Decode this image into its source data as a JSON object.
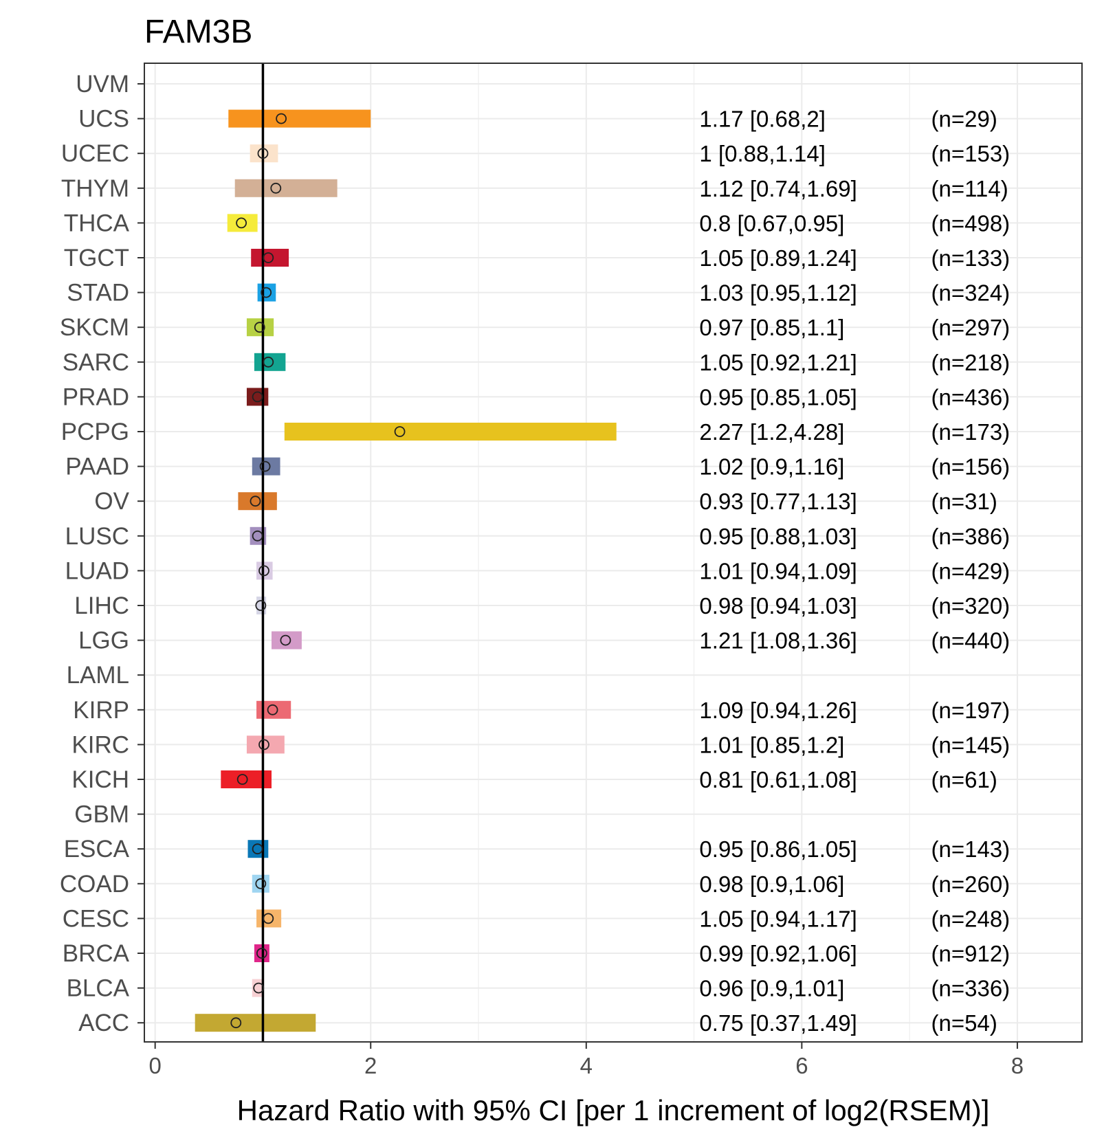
{
  "chart_data": {
    "type": "forest",
    "title": "FAM3B",
    "xlabel": "Hazard Ratio with 95% CI [per 1 increment of log2(RSEM)]",
    "xlim": [
      -0.1,
      8.6
    ],
    "xticks": [
      0,
      2,
      4,
      6,
      8
    ],
    "reference_line": 1,
    "grid": true,
    "rows": [
      {
        "label": "UVM",
        "hr": null,
        "lo": null,
        "hi": null,
        "text": "",
        "n": "",
        "color": ""
      },
      {
        "label": "UCS",
        "hr": 1.17,
        "lo": 0.68,
        "hi": 2,
        "text": "1.17 [0.68,2]",
        "n": "(n=29)",
        "color": "#F7931E"
      },
      {
        "label": "UCEC",
        "hr": 1,
        "lo": 0.88,
        "hi": 1.14,
        "text": "1 [0.88,1.14]",
        "n": "(n=153)",
        "color": "#FBE3CB"
      },
      {
        "label": "THYM",
        "hr": 1.12,
        "lo": 0.74,
        "hi": 1.69,
        "text": "1.12 [0.74,1.69]",
        "n": "(n=114)",
        "color": "#D3B096"
      },
      {
        "label": "THCA",
        "hr": 0.8,
        "lo": 0.67,
        "hi": 0.95,
        "text": "0.8 [0.67,0.95]",
        "n": "(n=498)",
        "color": "#F5EB3B"
      },
      {
        "label": "TGCT",
        "hr": 1.05,
        "lo": 0.89,
        "hi": 1.24,
        "text": "1.05 [0.89,1.24]",
        "n": "(n=133)",
        "color": "#C4162F"
      },
      {
        "label": "STAD",
        "hr": 1.03,
        "lo": 0.95,
        "hi": 1.12,
        "text": "1.03 [0.95,1.12]",
        "n": "(n=324)",
        "color": "#1AA1E4"
      },
      {
        "label": "SKCM",
        "hr": 0.97,
        "lo": 0.85,
        "hi": 1.1,
        "text": "0.97 [0.85,1.1]",
        "n": "(n=297)",
        "color": "#B7D144"
      },
      {
        "label": "SARC",
        "hr": 1.05,
        "lo": 0.92,
        "hi": 1.21,
        "text": "1.05 [0.92,1.21]",
        "n": "(n=218)",
        "color": "#13A491"
      },
      {
        "label": "PRAD",
        "hr": 0.95,
        "lo": 0.85,
        "hi": 1.05,
        "text": "0.95 [0.85,1.05]",
        "n": "(n=436)",
        "color": "#7A1C1C"
      },
      {
        "label": "PCPG",
        "hr": 2.27,
        "lo": 1.2,
        "hi": 4.28,
        "text": "2.27 [1.2,4.28]",
        "n": "(n=173)",
        "color": "#E7C21E"
      },
      {
        "label": "PAAD",
        "hr": 1.02,
        "lo": 0.9,
        "hi": 1.16,
        "text": "1.02 [0.9,1.16]",
        "n": "(n=156)",
        "color": "#6C7AA2"
      },
      {
        "label": "OV",
        "hr": 0.93,
        "lo": 0.77,
        "hi": 1.13,
        "text": "0.93 [0.77,1.13]",
        "n": "(n=31)",
        "color": "#D9792B"
      },
      {
        "label": "LUSC",
        "hr": 0.95,
        "lo": 0.88,
        "hi": 1.03,
        "text": "0.95 [0.88,1.03]",
        "n": "(n=386)",
        "color": "#A38FBE"
      },
      {
        "label": "LUAD",
        "hr": 1.01,
        "lo": 0.94,
        "hi": 1.09,
        "text": "1.01 [0.94,1.09]",
        "n": "(n=429)",
        "color": "#D9CBE3"
      },
      {
        "label": "LIHC",
        "hr": 0.98,
        "lo": 0.94,
        "hi": 1.03,
        "text": "0.98 [0.94,1.03]",
        "n": "(n=320)",
        "color": "#D6D6E6"
      },
      {
        "label": "LGG",
        "hr": 1.21,
        "lo": 1.08,
        "hi": 1.36,
        "text": "1.21 [1.08,1.36]",
        "n": "(n=440)",
        "color": "#D39BC8"
      },
      {
        "label": "LAML",
        "hr": null,
        "lo": null,
        "hi": null,
        "text": "",
        "n": "",
        "color": ""
      },
      {
        "label": "KIRP",
        "hr": 1.09,
        "lo": 0.94,
        "hi": 1.26,
        "text": "1.09 [0.94,1.26]",
        "n": "(n=197)",
        "color": "#EC6A73"
      },
      {
        "label": "KIRC",
        "hr": 1.01,
        "lo": 0.85,
        "hi": 1.2,
        "text": "1.01 [0.85,1.2]",
        "n": "(n=145)",
        "color": "#F4A8B0"
      },
      {
        "label": "KICH",
        "hr": 0.81,
        "lo": 0.61,
        "hi": 1.08,
        "text": "0.81 [0.61,1.08]",
        "n": "(n=61)",
        "color": "#EC1F27"
      },
      {
        "label": "GBM",
        "hr": null,
        "lo": null,
        "hi": null,
        "text": "",
        "n": "",
        "color": ""
      },
      {
        "label": "ESCA",
        "hr": 0.95,
        "lo": 0.86,
        "hi": 1.05,
        "text": "0.95 [0.86,1.05]",
        "n": "(n=143)",
        "color": "#0A77B6"
      },
      {
        "label": "COAD",
        "hr": 0.98,
        "lo": 0.9,
        "hi": 1.06,
        "text": "0.98 [0.9,1.06]",
        "n": "(n=260)",
        "color": "#9FD5F1"
      },
      {
        "label": "CESC",
        "hr": 1.05,
        "lo": 0.94,
        "hi": 1.17,
        "text": "1.05 [0.94,1.17]",
        "n": "(n=248)",
        "color": "#F6B56A"
      },
      {
        "label": "BRCA",
        "hr": 0.99,
        "lo": 0.92,
        "hi": 1.06,
        "text": "0.99 [0.92,1.06]",
        "n": "(n=912)",
        "color": "#E0268A"
      },
      {
        "label": "BLCA",
        "hr": 0.96,
        "lo": 0.9,
        "hi": 1.01,
        "text": "0.96 [0.9,1.01]",
        "n": "(n=336)",
        "color": "#F7D0D3"
      },
      {
        "label": "ACC",
        "hr": 0.75,
        "lo": 0.37,
        "hi": 1.49,
        "text": "0.75 [0.37,1.49]",
        "n": "(n=54)",
        "color": "#C3A832"
      }
    ]
  }
}
